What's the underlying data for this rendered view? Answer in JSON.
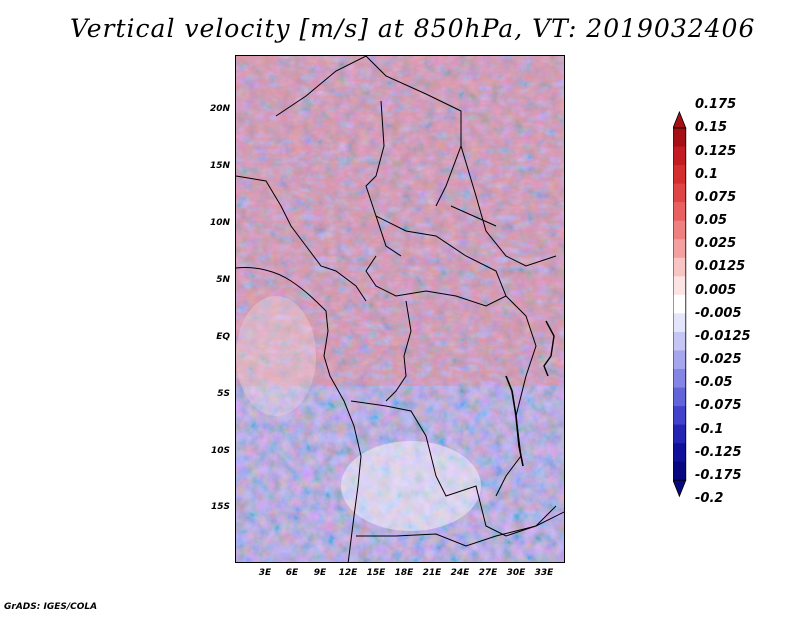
{
  "title": "Vertical velocity [m/s] at 850hPa, VT: 2019032406",
  "credit": "GrADS: IGES/COLA",
  "map": {
    "lat_labels": [
      "20N",
      "15N",
      "10N",
      "5N",
      "EQ",
      "5S",
      "10S",
      "15S"
    ],
    "lon_labels": [
      "3E",
      "6E",
      "9E",
      "12E",
      "15E",
      "18E",
      "21E",
      "24E",
      "27E",
      "30E",
      "33E"
    ]
  },
  "colorbar": {
    "labels": [
      "0.175",
      "0.15",
      "0.125",
      "0.1",
      "0.075",
      "0.05",
      "0.025",
      "0.0125",
      "0.005",
      "-0.005",
      "-0.0125",
      "-0.025",
      "-0.05",
      "-0.075",
      "-0.1",
      "-0.125",
      "-0.175",
      "-0.2"
    ],
    "colors": [
      "#a50f15",
      "#c41b22",
      "#d42d2d",
      "#e04545",
      "#e86060",
      "#ef8080",
      "#f4a0a0",
      "#f8c4c4",
      "#fce4e4",
      "#ffffff",
      "#e4e4fb",
      "#c6c6f5",
      "#a6a6ef",
      "#8585e6",
      "#6464da",
      "#4242cc",
      "#2424b4",
      "#10109a",
      "#070780"
    ]
  }
}
